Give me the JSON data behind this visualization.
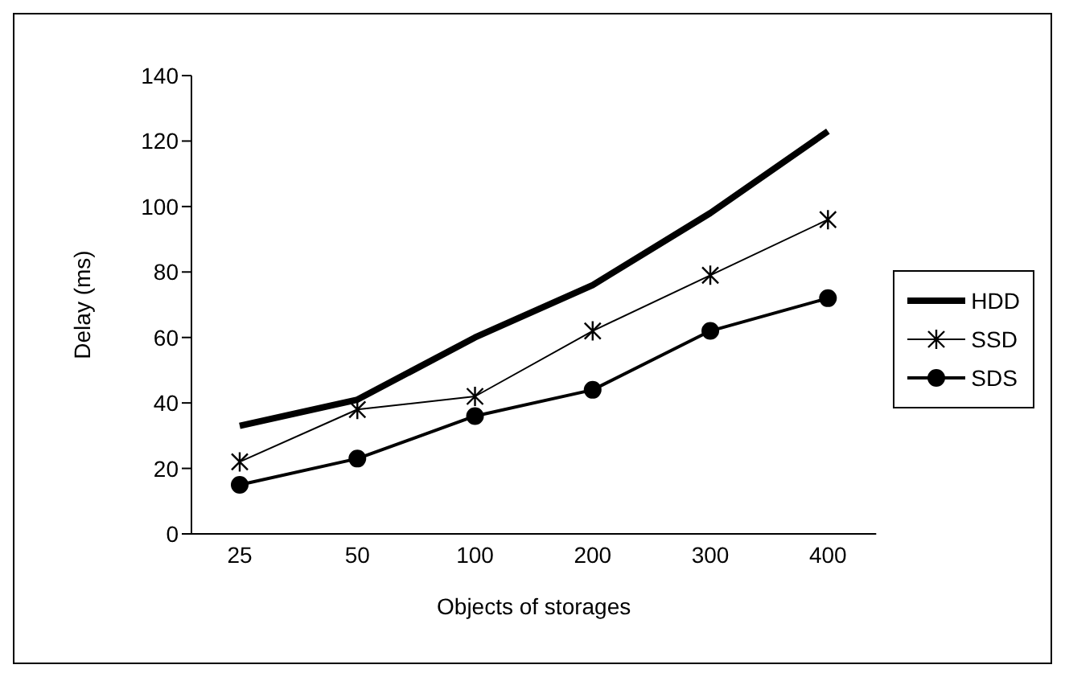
{
  "chart_data": {
    "type": "line",
    "xlabel": "Objects of storages",
    "ylabel": "Delay (ms)",
    "categories": [
      "25",
      "50",
      "100",
      "200",
      "300",
      "400"
    ],
    "series": [
      {
        "name": "HDD",
        "color": "#000000",
        "values": [
          33,
          41,
          60,
          76,
          98,
          123
        ],
        "marker": "none"
      },
      {
        "name": "SSD",
        "color": "#000000",
        "values": [
          22,
          38,
          42,
          62,
          79,
          96
        ],
        "marker": "cross"
      },
      {
        "name": "SDS",
        "color": "#000000",
        "values": [
          15,
          23,
          36,
          44,
          62,
          72
        ],
        "marker": "circle"
      }
    ],
    "ylim": [
      0,
      140
    ],
    "yticks": [
      0,
      20,
      40,
      60,
      80,
      100,
      120,
      140
    ],
    "grid": false,
    "legend": "right"
  }
}
